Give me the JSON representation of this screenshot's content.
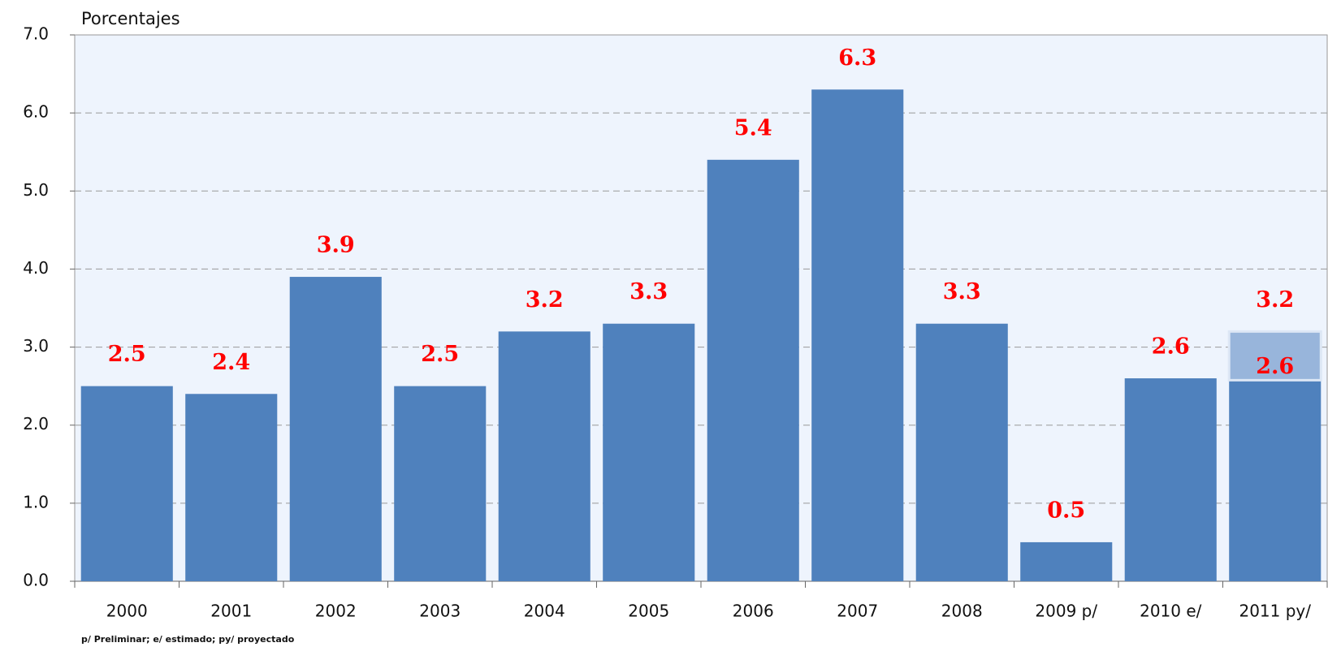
{
  "chart_data": {
    "type": "bar",
    "y_axis_label": "Porcentajes",
    "categories": [
      "2000",
      "2001",
      "2002",
      "2003",
      "2004",
      "2005",
      "2006",
      "2007",
      "2008",
      "2009 p/",
      "2010 e/",
      "2011 py/"
    ],
    "values": [
      2.5,
      2.4,
      3.9,
      2.5,
      3.2,
      3.3,
      5.4,
      6.3,
      3.3,
      0.5,
      2.6,
      3.2
    ],
    "color": "#4f81bd",
    "value_label_color": "#ff0000",
    "ylim": [
      0,
      7
    ],
    "yticks": [
      {
        "value": 0,
        "label": "0.0"
      },
      {
        "value": 1,
        "label": "1.0"
      },
      {
        "value": 2,
        "label": "2.0"
      },
      {
        "value": 3,
        "label": "3.0"
      },
      {
        "value": 4,
        "label": "4.0"
      },
      {
        "value": 5,
        "label": "5.0"
      },
      {
        "value": 6,
        "label": "6.0"
      },
      {
        "value": 7,
        "label": "7.0"
      }
    ],
    "grid": true,
    "tooltip": "2.6",
    "footnote": "p/ Preliminar; e/ estimado; py/ proyectado"
  }
}
